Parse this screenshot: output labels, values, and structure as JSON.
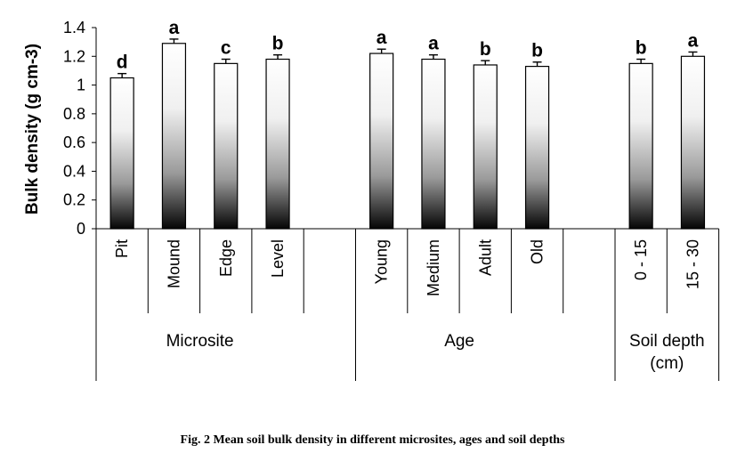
{
  "caption": "Fig. 2 Mean soil bulk density in different microsites, ages and soil depths",
  "chart_data": {
    "type": "bar",
    "ylabel": "Bulk density (g cm-3)",
    "ylim": [
      0,
      1.4
    ],
    "yticks": [
      "0",
      "0.2",
      "0.4",
      "0.6",
      "0.8",
      "1",
      "1.2",
      "1.4"
    ],
    "groups": [
      {
        "name": "Microsite",
        "categories": [
          "Pit",
          "Mound",
          "Edge",
          "Level"
        ],
        "values": [
          1.05,
          1.29,
          1.15,
          1.18
        ],
        "errors": [
          0.03,
          0.03,
          0.03,
          0.03
        ],
        "letters": [
          "d",
          "a",
          "c",
          "b"
        ]
      },
      {
        "name": "Age",
        "categories": [
          "Young",
          "Medium",
          "Adult",
          "Old"
        ],
        "values": [
          1.22,
          1.18,
          1.14,
          1.13
        ],
        "errors": [
          0.03,
          0.03,
          0.03,
          0.03
        ],
        "letters": [
          "a",
          "a",
          "b",
          "b"
        ]
      },
      {
        "name": "Soil depth (cm)",
        "name_lines": [
          "Soil depth",
          "(cm)"
        ],
        "categories": [
          "0 - 15",
          "15 - 30"
        ],
        "values": [
          1.15,
          1.2
        ],
        "errors": [
          0.03,
          0.03
        ],
        "letters": [
          "b",
          "a"
        ]
      }
    ]
  }
}
